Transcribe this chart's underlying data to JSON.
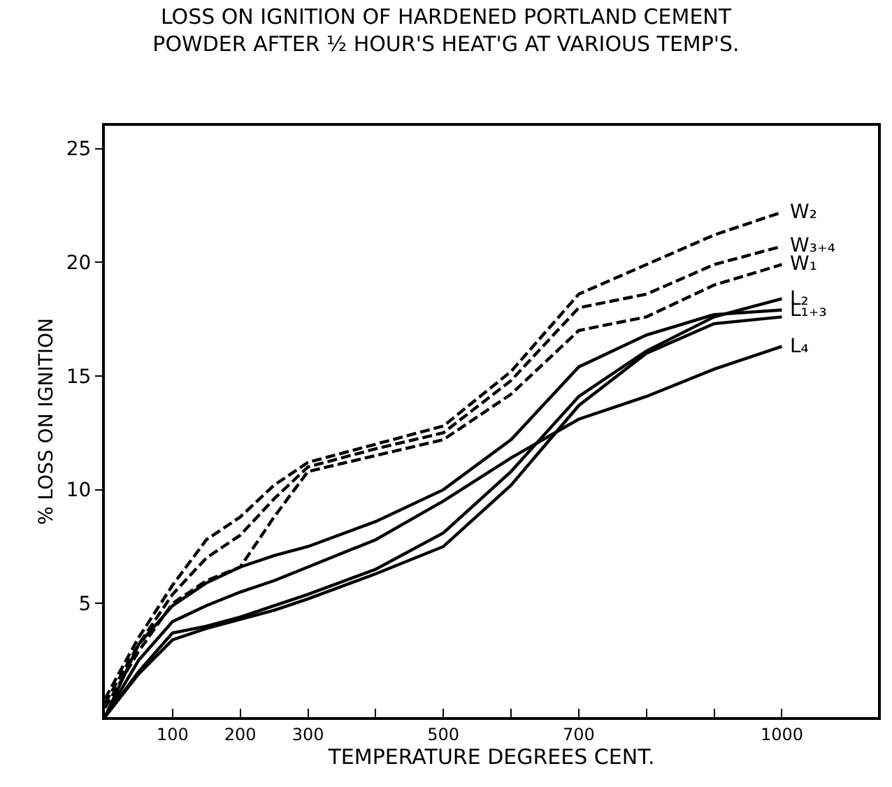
{
  "chart_data": {
    "type": "line",
    "title": "LOSS ON IGNITION OF HARDENED PORTLAND CEMENT\nPOWDER AFTER ½ HOUR'S HEAT'G AT VARIOUS TEMP'S.",
    "xlabel": "TEMPERATURE DEGREES CENT.",
    "ylabel": "% LOSS ON IGNITION",
    "x": [
      0,
      50,
      100,
      150,
      200,
      250,
      300,
      400,
      500,
      600,
      700,
      800,
      900,
      1000
    ],
    "series": [
      {
        "name": "W₂",
        "color": "#000000",
        "line_style": "dashed",
        "values": [
          0.8,
          3.5,
          5.8,
          7.8,
          8.8,
          10.2,
          11.2,
          12.0,
          12.8,
          15.2,
          18.6,
          19.9,
          21.2,
          22.2
        ]
      },
      {
        "name": "W₃₊₄",
        "color": "#000000",
        "line_style": "dashed",
        "values": [
          0.6,
          3.2,
          5.4,
          7.0,
          8.0,
          9.6,
          11.0,
          11.8,
          12.5,
          14.8,
          18.0,
          18.6,
          19.9,
          20.7
        ]
      },
      {
        "name": "W₁",
        "color": "#000000",
        "line_style": "dashed",
        "values": [
          0.4,
          2.9,
          5.0,
          6.0,
          6.6,
          8.8,
          10.8,
          11.5,
          12.2,
          14.2,
          17.0,
          17.6,
          19.0,
          19.9
        ]
      },
      {
        "name": "L₂",
        "color": "#000000",
        "line_style": "solid",
        "values": [
          0,
          2.0,
          3.7,
          4.0,
          4.4,
          4.9,
          5.4,
          6.5,
          8.1,
          10.8,
          14.1,
          16.1,
          17.6,
          18.4
        ]
      },
      {
        "name": "L₁₊₃",
        "color": "#000000",
        "line_style": "solid",
        "values": [
          0,
          3.2,
          4.9,
          5.9,
          6.6,
          7.1,
          7.5,
          8.6,
          10.0,
          12.2,
          15.4,
          16.8,
          17.7,
          17.9
        ]
      },
      {
        "color": "#000000",
        "line_style": "solid",
        "values": [
          0,
          1.9,
          3.4,
          3.9,
          4.3,
          4.7,
          5.2,
          6.3,
          7.5,
          10.2,
          13.7,
          16.0,
          17.3,
          17.6
        ]
      },
      {
        "name": "L₄",
        "color": "#000000",
        "line_style": "solid",
        "values": [
          0,
          2.5,
          4.2,
          4.9,
          5.5,
          6.0,
          6.6,
          7.8,
          9.5,
          11.4,
          13.1,
          14.1,
          15.3,
          16.3
        ]
      }
    ],
    "xlim": [
      0,
      1142
    ],
    "ylim": [
      0,
      26
    ],
    "xticks": [
      100,
      200,
      300,
      {
        "value": 400,
        "label": null
      },
      500,
      {
        "value": 600,
        "label": null
      },
      700,
      {
        "value": 800,
        "label": null
      },
      {
        "value": 900,
        "label": null
      },
      1000
    ],
    "yticks": [
      5,
      10,
      15,
      20,
      25
    ],
    "legend": false,
    "marker": "none"
  }
}
